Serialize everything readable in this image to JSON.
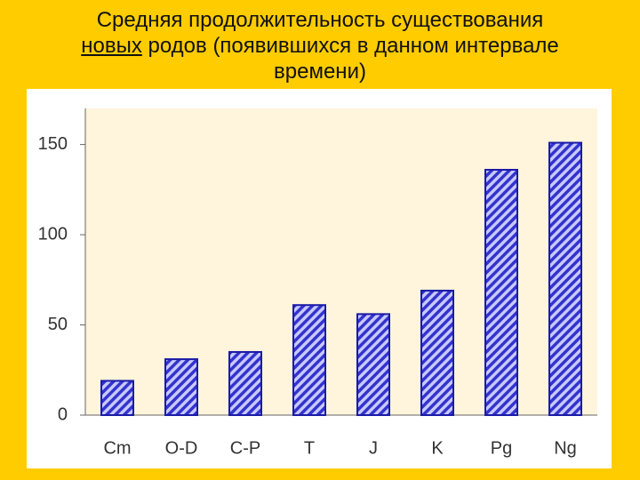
{
  "chart_data": {
    "type": "bar",
    "title": [
      "Средняя продолжительность существования",
      "новых",
      "родов (появившихся в данном интервале",
      "времени)"
    ],
    "categories": [
      "Cm",
      "O-D",
      "C-P",
      "T",
      "J",
      "K",
      "Pg",
      "Ng"
    ],
    "values": [
      19,
      31,
      35,
      61,
      56,
      69,
      136,
      151
    ],
    "color": "#3333cc",
    "ylim": [
      0,
      170
    ],
    "yticks": [
      0,
      50,
      100,
      150
    ],
    "grid": false
  }
}
